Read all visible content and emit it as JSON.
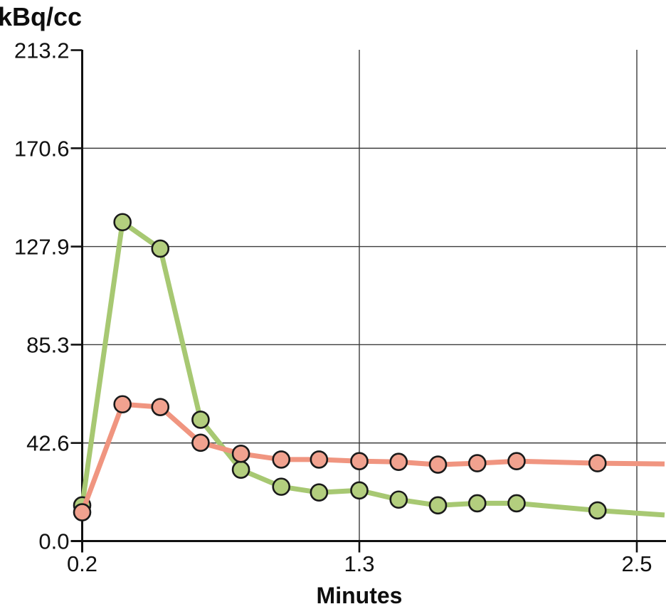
{
  "chart_data": {
    "type": "line",
    "title": "",
    "ylabel": "kBq/cc",
    "xlabel": "Minutes",
    "grid": true,
    "legend": "none",
    "ylim": [
      0,
      213.2
    ],
    "xlim": [
      0.2,
      2.62
    ],
    "y_ticks": [
      213.2,
      170.6,
      127.9,
      85.3,
      42.6,
      0.0
    ],
    "y_tick_labels": [
      "213.2",
      "170.6",
      "127.9",
      "85.3",
      "42.6",
      "0.0"
    ],
    "x_ticks": [
      0.2,
      1.3,
      2.5
    ],
    "x_tick_labels": [
      "0.2",
      "1.3",
      "2.5"
    ],
    "series": [
      {
        "name": "green-series",
        "line_color": "#a7c872",
        "marker_fill": "#b3ce7e",
        "marker_edge": "#1a1a1a",
        "x": [
          0.2,
          0.36,
          0.51,
          0.67,
          0.83,
          0.99,
          1.14,
          1.3,
          1.47,
          1.64,
          1.81,
          1.98,
          2.33
        ],
        "y": [
          15.5,
          138.5,
          127.0,
          52.7,
          31.0,
          23.6,
          21.1,
          22.0,
          18.0,
          15.5,
          16.4,
          16.4,
          13.3
        ],
        "line_extends_to": {
          "x": 2.62,
          "y": 11.3
        }
      },
      {
        "name": "salmon-series",
        "line_color": "#f09580",
        "marker_fill": "#f1a28f",
        "marker_edge": "#1a1a1a",
        "x": [
          0.2,
          0.36,
          0.51,
          0.67,
          0.83,
          0.99,
          1.14,
          1.3,
          1.47,
          1.64,
          1.81,
          1.98,
          2.33
        ],
        "y": [
          12.5,
          59.4,
          58.2,
          42.7,
          37.9,
          35.4,
          35.4,
          34.7,
          34.4,
          33.2,
          33.8,
          34.7,
          33.8
        ],
        "line_extends_to": {
          "x": 2.62,
          "y": 33.5
        }
      }
    ],
    "style": {
      "axis_color": "#111111",
      "grid_color": "#3c3c3c",
      "tick_label_color": "#111111",
      "background": "#ffffff"
    }
  }
}
